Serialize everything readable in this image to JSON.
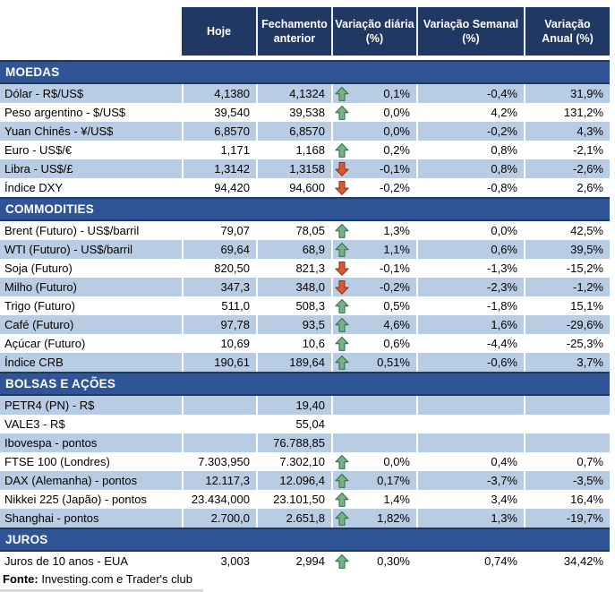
{
  "colors": {
    "header_bg": "#1F3864",
    "section_bg": "#2F5597",
    "shaded_row_bg": "#B8CCE4",
    "white_row_bg": "#FFFFFF",
    "header_text": "#FFFFFF",
    "body_text": "#000000",
    "up_arrow_fill": "#77B289",
    "up_arrow_stroke": "#33704E",
    "down_arrow_fill": "#D85B36",
    "down_arrow_stroke": "#96301B"
  },
  "chart_data": {
    "type": "table",
    "columns": [
      "Hoje",
      "Fechamento\nanterior",
      "Variação diária\n(%)",
      "Variação Semanal\n(%)",
      "Variação\nAnual (%)"
    ],
    "sections": [
      {
        "title": "MOEDAS",
        "first_row_shaded": true,
        "rows": [
          {
            "label": "Dólar - R$/US$",
            "hoje": "4,1380",
            "fechamento": "4,1324",
            "arrow": "up",
            "var_diaria": "0,1%",
            "var_semanal": "-0,4%",
            "var_anual": "31,9%"
          },
          {
            "label": "Peso argentino - $/US$",
            "hoje": "39,540",
            "fechamento": "39,538",
            "arrow": "up",
            "var_diaria": "0,0%",
            "var_semanal": "4,2%",
            "var_anual": "131,2%"
          },
          {
            "label": "Yuan Chinês - ¥/US$",
            "hoje": "6,8570",
            "fechamento": "6,8570",
            "arrow": "",
            "var_diaria": "0,0%",
            "var_semanal": "-0,2%",
            "var_anual": "4,3%"
          },
          {
            "label": "Euro - US$/€",
            "hoje": "1,171",
            "fechamento": "1,168",
            "arrow": "up",
            "var_diaria": "0,2%",
            "var_semanal": "0,8%",
            "var_anual": "-2,1%"
          },
          {
            "label": "Libra - US$/£",
            "hoje": "1,3142",
            "fechamento": "1,3158",
            "arrow": "down",
            "var_diaria": "-0,1%",
            "var_semanal": "0,8%",
            "var_anual": "-2,6%"
          },
          {
            "label": "Índice DXY",
            "hoje": "94,420",
            "fechamento": "94,600",
            "arrow": "down",
            "var_diaria": "-0,2%",
            "var_semanal": "-0,8%",
            "var_anual": "2,6%"
          }
        ]
      },
      {
        "title": "COMMODITIES",
        "first_row_shaded": false,
        "rows": [
          {
            "label": "Brent (Futuro) - US$/barril",
            "hoje": "79,07",
            "fechamento": "78,05",
            "arrow": "up",
            "var_diaria": "1,3%",
            "var_semanal": "0,0%",
            "var_anual": "42,5%"
          },
          {
            "label": "WTI (Futuro) - US$/barril",
            "hoje": "69,64",
            "fechamento": "68,9",
            "arrow": "up",
            "var_diaria": "1,1%",
            "var_semanal": "0,6%",
            "var_anual": "39,5%"
          },
          {
            "label": "Soja (Futuro)",
            "hoje": "820,50",
            "fechamento": "821,3",
            "arrow": "down",
            "var_diaria": "-0,1%",
            "var_semanal": "-1,3%",
            "var_anual": "-15,2%"
          },
          {
            "label": "Milho (Futuro)",
            "hoje": "347,3",
            "fechamento": "348,0",
            "arrow": "down",
            "var_diaria": "-0,2%",
            "var_semanal": "-2,3%",
            "var_anual": "-1,2%"
          },
          {
            "label": "Trigo (Futuro)",
            "hoje": "511,0",
            "fechamento": "508,3",
            "arrow": "up",
            "var_diaria": "0,5%",
            "var_semanal": "-1,8%",
            "var_anual": "15,1%"
          },
          {
            "label": "Café (Futuro)",
            "hoje": "97,78",
            "fechamento": "93,5",
            "arrow": "up",
            "var_diaria": "4,6%",
            "var_semanal": "1,6%",
            "var_anual": "-29,6%"
          },
          {
            "label": "Açúcar (Futuro)",
            "hoje": "10,69",
            "fechamento": "10,6",
            "arrow": "up",
            "var_diaria": "0,6%",
            "var_semanal": "-4,4%",
            "var_anual": "-25,3%"
          },
          {
            "label": "Índice CRB",
            "hoje": "190,61",
            "fechamento": "189,64",
            "arrow": "up",
            "var_diaria": "0,51%",
            "var_semanal": "-0,6%",
            "var_anual": "3,7%"
          }
        ]
      },
      {
        "title": "BOLSAS E AÇÕES",
        "first_row_shaded": true,
        "rows": [
          {
            "label": "PETR4 (PN) - R$",
            "hoje": "",
            "fechamento": "19,40",
            "arrow": "",
            "var_diaria": "",
            "var_semanal": "",
            "var_anual": ""
          },
          {
            "label": "VALE3 - R$",
            "hoje": "",
            "fechamento": "55,04",
            "arrow": "",
            "var_diaria": "",
            "var_semanal": "",
            "var_anual": ""
          },
          {
            "label": "Ibovespa - pontos",
            "hoje": "",
            "fechamento": "76.788,85",
            "arrow": "",
            "var_diaria": "",
            "var_semanal": "",
            "var_anual": ""
          },
          {
            "label": "FTSE 100 (Londres)",
            "hoje": "7.303,950",
            "fechamento": "7.302,10",
            "arrow": "up",
            "var_diaria": "0,0%",
            "var_semanal": "0,4%",
            "var_anual": "0,7%"
          },
          {
            "label": "DAX (Alemanha) - pontos",
            "hoje": "12.117,3",
            "fechamento": "12.096,4",
            "arrow": "up",
            "var_diaria": "0,17%",
            "var_semanal": "-3,7%",
            "var_anual": "-3,5%"
          },
          {
            "label": "Nikkei 225 (Japão) - pontos",
            "hoje": "23.434,000",
            "fechamento": "23.101,50",
            "arrow": "up",
            "var_diaria": "1,4%",
            "var_semanal": "3,4%",
            "var_anual": "16,4%"
          },
          {
            "label": "Shanghai - pontos",
            "hoje": "2.700,0",
            "fechamento": "2.651,8",
            "arrow": "up",
            "var_diaria": "1,82%",
            "var_semanal": "1,3%",
            "var_anual": "-19,7%"
          }
        ]
      },
      {
        "title": "JUROS",
        "first_row_shaded": false,
        "rows": [
          {
            "label": "Juros de 10 anos - EUA",
            "hoje": "3,003",
            "fechamento": "2,994",
            "arrow": "up",
            "var_diaria": "0,30%",
            "var_semanal": "0,74%",
            "var_anual": "34,42%"
          }
        ]
      }
    ]
  },
  "footer": {
    "source_label": "Fonte:",
    "source_text": " Investing.com e Trader's club"
  }
}
